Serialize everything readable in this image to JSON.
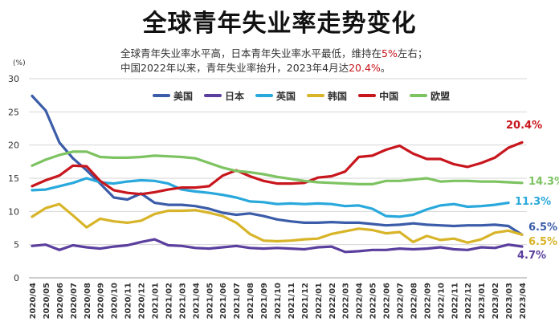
{
  "title": "全球青年失业率走势变化",
  "subtitle": {
    "line1_prefix": "全球青年失业率水平高，日本青年失业率水平最低，维持在",
    "line1_highlight": "5%",
    "line1_suffix": "左右；",
    "line2_prefix": "中国2022年以来，青年失业率抬升，2023年4月达",
    "line2_highlight": "20.4%",
    "line2_suffix": "。"
  },
  "chart_data": {
    "type": "line",
    "unit_label": "(%)",
    "ylim": [
      0,
      30
    ],
    "yticks": [
      0,
      5,
      10,
      15,
      20,
      25,
      30
    ],
    "grid": true,
    "legend_position": "top",
    "x": [
      "2020/04",
      "2020/05",
      "2020/06",
      "2020/07",
      "2020/08",
      "2020/09",
      "2020/10",
      "2020/11",
      "2020/12",
      "2021/01",
      "2021/02",
      "2021/03",
      "2021/04",
      "2021/05",
      "2021/06",
      "2021/07",
      "2021/08",
      "2021/09",
      "2021/10",
      "2021/11",
      "2021/12",
      "2022/01",
      "2022/02",
      "2022/03",
      "2022/04",
      "2022/05",
      "2022/06",
      "2022/07",
      "2022/08",
      "2022/09",
      "2022/10",
      "2022/11",
      "2022/12",
      "2023/01",
      "2023/02",
      "2023/03",
      "2023/04"
    ],
    "series": [
      {
        "name": "美国",
        "color": "#3b5ca8",
        "end_label": "6.5%",
        "values": [
          27.4,
          25.2,
          20.4,
          18.0,
          16.2,
          14.2,
          12.1,
          11.8,
          12.7,
          11.3,
          11.0,
          11.0,
          10.8,
          10.4,
          9.8,
          9.5,
          9.7,
          9.3,
          8.8,
          8.5,
          8.3,
          8.3,
          8.4,
          8.3,
          8.3,
          8.1,
          7.9,
          8.0,
          8.2,
          8.0,
          7.9,
          7.8,
          7.9,
          7.9,
          8.0,
          7.8,
          6.5
        ]
      },
      {
        "name": "日本",
        "color": "#5b3f9e",
        "end_label": "4.7%",
        "values": [
          4.8,
          5.0,
          4.2,
          4.9,
          4.6,
          4.4,
          4.7,
          4.9,
          5.4,
          5.8,
          4.9,
          4.8,
          4.5,
          4.4,
          4.6,
          4.8,
          4.5,
          4.4,
          4.5,
          4.4,
          4.3,
          4.6,
          4.7,
          3.9,
          4.0,
          4.2,
          4.2,
          4.4,
          4.3,
          4.4,
          4.6,
          4.3,
          4.2,
          4.6,
          4.5,
          5.0,
          4.7
        ]
      },
      {
        "name": "英国",
        "color": "#29a8dc",
        "end_label": "11.3%",
        "values": [
          13.2,
          13.3,
          13.8,
          14.3,
          15.0,
          14.4,
          14.2,
          14.5,
          14.7,
          14.6,
          14.2,
          13.3,
          13.0,
          12.8,
          12.5,
          12.1,
          11.5,
          11.4,
          11.1,
          11.2,
          11.1,
          11.2,
          11.1,
          10.8,
          10.9,
          10.4,
          9.3,
          9.2,
          9.5,
          10.3,
          10.9,
          11.1,
          10.7,
          10.8,
          11.0,
          11.3,
          null
        ]
      },
      {
        "name": "韩国",
        "color": "#d8b428",
        "end_label": "6.5%",
        "values": [
          9.2,
          10.5,
          11.1,
          9.4,
          7.6,
          8.9,
          8.5,
          8.3,
          8.6,
          9.6,
          10.1,
          10.1,
          10.2,
          9.8,
          9.3,
          8.3,
          6.6,
          5.6,
          5.5,
          5.6,
          5.8,
          5.9,
          6.6,
          7.0,
          7.4,
          7.2,
          6.7,
          6.9,
          5.4,
          6.3,
          5.7,
          5.9,
          5.3,
          5.8,
          6.8,
          7.1,
          6.5
        ]
      },
      {
        "name": "中国",
        "color": "#c8161d",
        "end_label": "20.4%",
        "values": [
          13.8,
          14.7,
          15.4,
          16.9,
          16.8,
          14.6,
          13.2,
          12.8,
          12.6,
          12.9,
          13.3,
          13.6,
          13.6,
          13.8,
          15.4,
          16.2,
          15.3,
          14.6,
          14.2,
          14.2,
          14.3,
          15.1,
          15.3,
          16.0,
          18.2,
          18.4,
          19.3,
          19.9,
          18.7,
          17.9,
          17.9,
          17.1,
          16.7,
          17.3,
          18.1,
          19.6,
          20.4
        ]
      },
      {
        "name": "欧盟",
        "color": "#7dc361",
        "end_label": "14.3%",
        "values": [
          16.9,
          17.8,
          18.5,
          19.0,
          19.0,
          18.2,
          18.1,
          18.1,
          18.2,
          18.4,
          18.3,
          18.2,
          18.0,
          17.3,
          16.6,
          16.1,
          15.9,
          15.6,
          15.2,
          14.9,
          14.6,
          14.4,
          14.3,
          14.2,
          14.1,
          14.1,
          14.6,
          14.6,
          14.8,
          15.0,
          14.5,
          14.6,
          14.6,
          14.5,
          14.5,
          14.4,
          14.3
        ]
      }
    ]
  }
}
